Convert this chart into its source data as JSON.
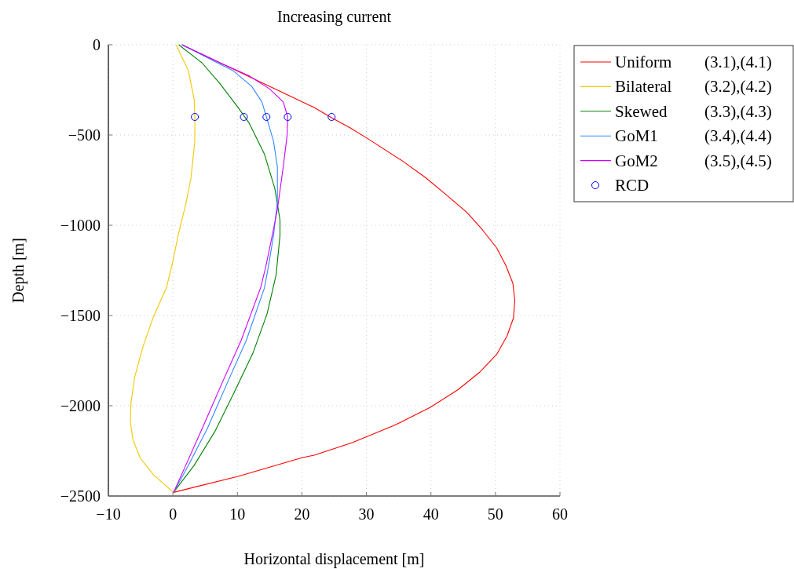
{
  "chart_data": {
    "type": "line",
    "title": "Increasing current",
    "xlabel": "Horizontal displacement [m]",
    "ylabel": "Depth [m]",
    "xlim": [
      -10,
      60
    ],
    "xticks": [
      {
        "value": -10,
        "label": "−10"
      },
      0,
      10,
      20,
      30,
      40,
      50,
      60
    ],
    "ylim": [
      -2500,
      0
    ],
    "yticks": [
      {
        "value": -2500,
        "label": "−2500"
      },
      {
        "value": -2000,
        "label": "−2000"
      },
      {
        "value": -1500,
        "label": "−1500"
      },
      {
        "value": -1000,
        "label": "−1000"
      },
      {
        "value": -500,
        "label": "−500"
      },
      0
    ],
    "grid": true,
    "legend": "top right",
    "line_style": "solid",
    "series": [
      {
        "name": "Uniform (3.1),(4.1)",
        "color": "#ff0000",
        "x": [
          1.4,
          21.9,
          24.6,
          27.5,
          30.2,
          35.5,
          39.2,
          42.5,
          45.6,
          48.0,
          50.2,
          51.6,
          52.7,
          53.0,
          52.8,
          51.8,
          50.2,
          47.6,
          44.2,
          39.9,
          34.3,
          27.8,
          21.9,
          20.1,
          10.1,
          0.1
        ],
        "values": [
          0,
          -348,
          -404,
          -461,
          -520,
          -642,
          -737,
          -835,
          -930,
          -1026,
          -1126,
          -1222,
          -1322,
          -1417,
          -1513,
          -1613,
          -1715,
          -1813,
          -1911,
          -2009,
          -2109,
          -2204,
          -2274,
          -2287,
          -2391,
          -2480
        ]
      },
      {
        "name": "Bilateral (3.2),(4.2)",
        "color": "#f0c800",
        "x": [
          0.5,
          2.4,
          3.3,
          3.4,
          3.4,
          2.8,
          2.0,
          0.8,
          0.0,
          -1.0,
          -3.0,
          -4.7,
          -5.9,
          -6.5,
          -6.6,
          -6.2,
          -5.1,
          -3.0,
          0.1
        ],
        "values": [
          0,
          -143,
          -303,
          -404,
          -535,
          -738,
          -883,
          -1057,
          -1200,
          -1346,
          -1505,
          -1680,
          -1839,
          -1984,
          -2085,
          -2187,
          -2287,
          -2383,
          -2480
        ]
      },
      {
        "name": "Skewed (3.3),(4.3)",
        "color": "#008000",
        "x": [
          0.9,
          4.5,
          7.3,
          10.1,
          11.8,
          14.2,
          15.8,
          16.6,
          16.6,
          16.0,
          14.6,
          12.4,
          9.5,
          6.5,
          3.3,
          0.1
        ],
        "values": [
          0,
          -100,
          -216,
          -347,
          -433,
          -607,
          -796,
          -970,
          -1057,
          -1274,
          -1491,
          -1709,
          -1926,
          -2143,
          -2330,
          -2480
        ]
      },
      {
        "name": "GoM1 (3.4),(4.4)",
        "color": "#3388ff",
        "x": [
          1.4,
          6.1,
          9.3,
          12.2,
          13.8,
          14.5,
          15.6,
          16.2,
          16.2,
          15.6,
          14.8,
          14.2,
          11.4,
          8.5,
          5.3,
          2.4,
          0.1
        ],
        "values": [
          0,
          -86,
          -143,
          -230,
          -317,
          -400,
          -535,
          -678,
          -868,
          -1057,
          -1230,
          -1346,
          -1636,
          -1868,
          -2129,
          -2330,
          -2480
        ]
      },
      {
        "name": "GoM2 (3.5),(4.5)",
        "color": "#cc00ff",
        "x": [
          1.4,
          7.3,
          11.8,
          15.0,
          17.1,
          17.8,
          17.7,
          17.1,
          16.2,
          15.4,
          14.4,
          13.6,
          10.6,
          7.7,
          4.5,
          2.0,
          0.1
        ],
        "values": [
          0,
          -100,
          -172,
          -245,
          -317,
          -400,
          -504,
          -678,
          -912,
          -1057,
          -1230,
          -1346,
          -1636,
          -1868,
          -2129,
          -2330,
          -2480
        ]
      },
      {
        "name": "RCD",
        "type": "scatter",
        "marker": "circle",
        "color": "#0000ff",
        "x": [
          3.4,
          11.0,
          14.5,
          17.8,
          24.6
        ],
        "values": [
          -400,
          -400,
          -400,
          -400,
          -400
        ]
      }
    ]
  }
}
